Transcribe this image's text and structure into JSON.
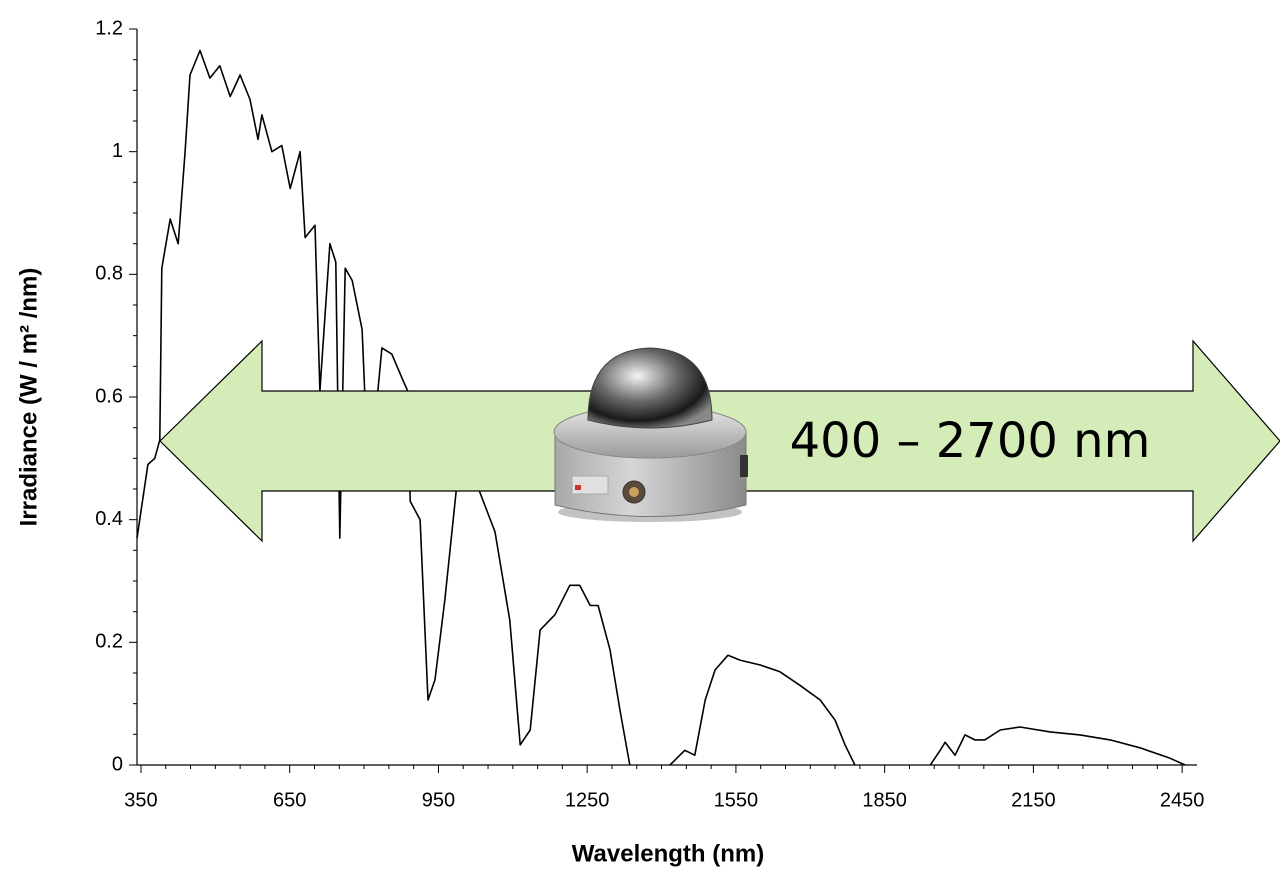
{
  "chart_data": {
    "type": "line",
    "x_label": "Wavelength (nm)",
    "y_label": "Irradiance (W / m² /nm)",
    "annotation": "400 – 2700 nm",
    "xlim": [
      342,
      2480
    ],
    "ylim": [
      0,
      1.2
    ],
    "xticks": [
      350,
      650,
      950,
      1250,
      1550,
      1850,
      2150,
      2450
    ],
    "yticks": [
      0,
      0.2,
      0.4,
      0.6,
      0.8,
      1,
      1.2
    ],
    "grid": false,
    "series": [
      {
        "color": "#000000",
        "x": [
          342,
          364,
          378,
          388,
          392,
          409,
          425,
          439,
          449,
          469,
          489,
          509,
          530,
          550,
          570,
          586,
          594,
          614,
          634,
          651,
          671,
          681,
          701,
          711,
          731,
          743,
          751,
          762,
          776,
          796,
          808,
          822,
          836,
          856,
          877,
          888,
          893,
          913,
          929,
          943,
          963,
          990,
          1024,
          1064,
          1094,
          1115,
          1135,
          1155,
          1185,
          1215,
          1235,
          1256,
          1272,
          1296,
          1316,
          1336,
          null,
          1417,
          1447,
          1467,
          1488,
          1508,
          1534,
          1558,
          1599,
          1639,
          1679,
          1720,
          1750,
          1770,
          1790,
          null,
          1942,
          1962,
          1972,
          1992,
          2012,
          2032,
          2052,
          2083,
          2123,
          2184,
          2244,
          2305,
          2365,
          2426,
          2456
        ],
        "values": [
          0.37,
          0.49,
          0.5,
          0.53,
          0.81,
          0.89,
          0.85,
          1.0,
          1.125,
          1.165,
          1.12,
          1.14,
          1.09,
          1.125,
          1.085,
          1.02,
          1.06,
          1.0,
          1.01,
          0.94,
          1.0,
          0.86,
          0.88,
          0.61,
          0.85,
          0.82,
          0.37,
          0.81,
          0.79,
          0.71,
          0.48,
          0.56,
          0.68,
          0.67,
          0.63,
          0.61,
          0.43,
          0.4,
          0.106,
          0.139,
          0.27,
          0.48,
          0.465,
          0.38,
          0.236,
          0.033,
          0.057,
          0.22,
          0.245,
          0.293,
          0.293,
          0.26,
          0.26,
          0.188,
          0.09,
          0,
          null,
          0,
          0.024,
          0.016,
          0.106,
          0.155,
          0.179,
          0.171,
          0.163,
          0.152,
          0.13,
          0.106,
          0.073,
          0.033,
          0,
          null,
          0,
          0.024,
          0.037,
          0.016,
          0.049,
          0.041,
          0.041,
          0.057,
          0.062,
          0.054,
          0.049,
          0.041,
          0.028,
          0.011,
          0
        ]
      }
    ]
  }
}
